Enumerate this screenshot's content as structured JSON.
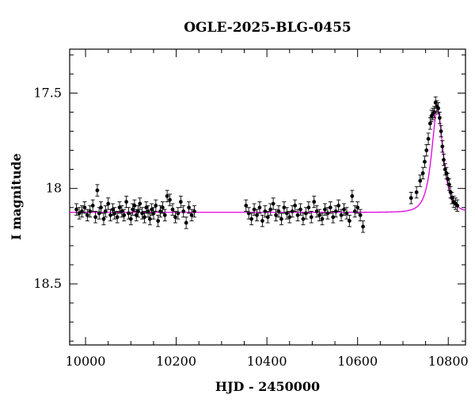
{
  "chart_data": {
    "type": "scatter",
    "title": "OGLE-2025-BLG-0455",
    "xlabel": "HJD - 2450000",
    "ylabel": "I magnitude",
    "xlim": [
      9965,
      10838
    ],
    "ylim": [
      18.82,
      17.27
    ],
    "y_inverted": true,
    "x_ticks": [
      10000,
      10200,
      10400,
      10600,
      10800
    ],
    "y_ticks": [
      17.5,
      18,
      18.5
    ],
    "x_minor_step": 50,
    "y_minor_step": 0.1,
    "grid": false,
    "legend": "none",
    "colors": {
      "data": "#000000",
      "model": "#e000e0"
    },
    "series": [
      {
        "type": "scatter_with_errorbars",
        "x": [
          9980,
          9986,
          9992,
          9998,
          10004,
          10010,
          10016,
          10022,
          10026,
          10030,
          10034,
          10040,
          10044,
          10050,
          10055,
          10060,
          10064,
          10070,
          10075,
          10080,
          10085,
          10090,
          10095,
          10100,
          10104,
          10108,
          10112,
          10116,
          10120,
          10125,
          10130,
          10134,
          10138,
          10142,
          10146,
          10150,
          10155,
          10160,
          10165,
          10170,
          10175,
          10180,
          10186,
          10192,
          10198,
          10204,
          10210,
          10216,
          10222,
          10228,
          10234,
          10240,
          10354,
          10360,
          10366,
          10372,
          10378,
          10384,
          10390,
          10396,
          10402,
          10408,
          10414,
          10420,
          10426,
          10432,
          10438,
          10444,
          10450,
          10456,
          10462,
          10468,
          10474,
          10480,
          10486,
          10492,
          10498,
          10504,
          10510,
          10516,
          10522,
          10528,
          10534,
          10540,
          10546,
          10552,
          10558,
          10564,
          10570,
          10576,
          10582,
          10588,
          10594,
          10600,
          10606,
          10612,
          10718,
          10730,
          10738,
          10744,
          10748,
          10752,
          10756,
          10760,
          10763,
          10766,
          10769,
          10772,
          10775,
          10778,
          10781,
          10784,
          10787,
          10790,
          10793,
          10796,
          10799,
          10802,
          10805,
          10808,
          10812,
          10816,
          10820
        ],
        "y": [
          18.11,
          18.13,
          18.12,
          18.1,
          18.14,
          18.12,
          18.09,
          18.15,
          18.01,
          18.13,
          18.1,
          18.16,
          18.12,
          18.08,
          18.14,
          18.11,
          18.13,
          18.15,
          18.1,
          18.12,
          18.14,
          18.07,
          18.13,
          18.16,
          18.11,
          18.09,
          18.14,
          18.12,
          18.08,
          18.13,
          18.15,
          18.1,
          18.12,
          18.16,
          18.11,
          18.13,
          18.09,
          18.17,
          18.12,
          18.1,
          18.14,
          18.04,
          18.06,
          18.11,
          18.15,
          18.13,
          18.07,
          18.12,
          18.18,
          18.1,
          18.14,
          18.12,
          18.09,
          18.13,
          18.16,
          18.11,
          18.14,
          18.1,
          18.17,
          18.12,
          18.15,
          18.11,
          18.08,
          18.14,
          18.12,
          18.16,
          18.1,
          18.13,
          18.15,
          18.12,
          18.09,
          18.14,
          18.11,
          18.16,
          18.13,
          18.1,
          18.15,
          18.07,
          18.12,
          18.14,
          18.16,
          18.11,
          18.13,
          18.1,
          18.15,
          18.12,
          18.09,
          18.14,
          18.11,
          18.13,
          18.17,
          18.04,
          18.12,
          18.1,
          18.14,
          18.2,
          18.05,
          18.02,
          17.96,
          17.92,
          17.86,
          17.8,
          17.74,
          17.66,
          17.62,
          17.61,
          17.6,
          17.55,
          17.57,
          17.58,
          17.63,
          17.7,
          17.78,
          17.85,
          17.9,
          17.92,
          17.95,
          17.98,
          18.02,
          18.05,
          18.07,
          18.08,
          18.09
        ],
        "yerr": 0.03
      },
      {
        "type": "model_curve",
        "baseline_mag": 18.125,
        "peak_mag": 17.585,
        "t0": 10776,
        "tE": 18
      }
    ]
  }
}
